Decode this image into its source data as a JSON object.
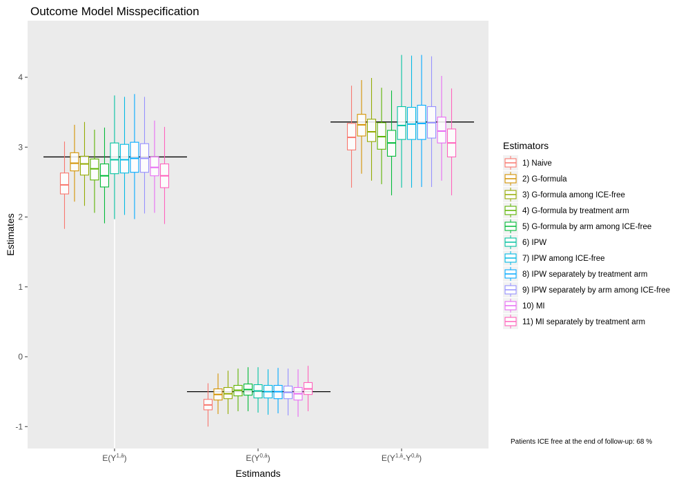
{
  "chart_data": {
    "type": "boxplot",
    "title": "Outcome Model Misspecification",
    "xlabel": "Estimands",
    "ylabel": "Estimates",
    "ylim": [
      -1.25,
      4.8
    ],
    "yticks": [
      -1,
      0,
      1,
      2,
      3,
      4
    ],
    "grid": false,
    "legend_position": "right",
    "legend_title": "Estimators",
    "note": "Patients ICE free at the end of follow-up: 68 %",
    "categories": [
      {
        "id": "e1",
        "base": "E(Y",
        "sup": "1,ā",
        "close": ")"
      },
      {
        "id": "e2",
        "base": "E(Y",
        "sup": "0,ā",
        "close": ")"
      },
      {
        "id": "e3",
        "base": "E(Y",
        "sup1": "1,ā",
        "mid": "-Y",
        "sup2": "0,ā",
        "close": ")"
      }
    ],
    "reference_lines": [
      2.86,
      -0.5,
      3.36
    ],
    "series": [
      {
        "name": "1) Naive",
        "color": "#F8766D",
        "boxes": [
          [
            1.83,
            2.33,
            2.46,
            2.63,
            3.08
          ],
          [
            -1.0,
            -0.76,
            -0.69,
            -0.61,
            -0.38
          ],
          [
            2.42,
            2.96,
            3.14,
            3.34,
            3.88
          ]
        ]
      },
      {
        "name": "2) G-formula",
        "color": "#D39200",
        "boxes": [
          [
            2.22,
            2.66,
            2.77,
            2.92,
            3.32
          ],
          [
            -0.82,
            -0.62,
            -0.54,
            -0.46,
            -0.24
          ],
          [
            2.62,
            3.16,
            3.32,
            3.47,
            3.96
          ]
        ]
      },
      {
        "name": "3) G-formula among ICE-free",
        "color": "#93AA00",
        "boxes": [
          [
            2.16,
            2.6,
            2.76,
            2.87,
            3.36
          ],
          [
            -0.82,
            -0.6,
            -0.53,
            -0.44,
            -0.2
          ],
          [
            2.52,
            3.08,
            3.22,
            3.4,
            3.99
          ]
        ]
      },
      {
        "name": "4) G-formula by treatment arm",
        "color": "#5BB300",
        "boxes": [
          [
            2.06,
            2.53,
            2.69,
            2.83,
            3.25
          ],
          [
            -0.78,
            -0.56,
            -0.48,
            -0.41,
            -0.17
          ],
          [
            2.47,
            2.97,
            3.15,
            3.35,
            3.85
          ]
        ]
      },
      {
        "name": "5) G-formula by arm among ICE-free",
        "color": "#00BA38",
        "boxes": [
          [
            1.91,
            2.43,
            2.59,
            2.76,
            3.28
          ],
          [
            -0.78,
            -0.55,
            -0.47,
            -0.39,
            -0.15
          ],
          [
            2.31,
            2.87,
            3.06,
            3.24,
            3.81
          ]
        ]
      },
      {
        "name": "6) IPW",
        "color": "#00C19F",
        "boxes": [
          [
            1.97,
            2.62,
            2.82,
            3.06,
            3.74
          ],
          [
            -0.8,
            -0.59,
            -0.49,
            -0.4,
            -0.15
          ],
          [
            2.42,
            3.11,
            3.31,
            3.58,
            4.32
          ]
        ]
      },
      {
        "name": "7) IPW among ICE-free",
        "color": "#00B9E3",
        "boxes": [
          [
            2.03,
            2.63,
            2.82,
            3.04,
            3.72
          ],
          [
            -0.83,
            -0.59,
            -0.5,
            -0.41,
            -0.18
          ],
          [
            2.42,
            3.11,
            3.33,
            3.57,
            4.31
          ]
        ]
      },
      {
        "name": "8) IPW separately by treatment arm",
        "color": "#00A9FF",
        "boxes": [
          [
            1.97,
            2.64,
            2.84,
            3.07,
            3.76
          ],
          [
            -0.81,
            -0.6,
            -0.5,
            -0.41,
            -0.16
          ],
          [
            2.43,
            3.11,
            3.34,
            3.6,
            4.32
          ]
        ]
      },
      {
        "name": "9) IPW separately by arm among ICE-free",
        "color": "#9590FF",
        "boxes": [
          [
            2.05,
            2.64,
            2.84,
            3.05,
            3.72
          ],
          [
            -0.84,
            -0.6,
            -0.51,
            -0.42,
            -0.17
          ],
          [
            2.43,
            3.13,
            3.35,
            3.58,
            4.3
          ]
        ]
      },
      {
        "name": "10) MI",
        "color": "#E76BF3",
        "boxes": [
          [
            2.06,
            2.59,
            2.71,
            2.86,
            3.38
          ],
          [
            -0.86,
            -0.62,
            -0.53,
            -0.44,
            -0.18
          ],
          [
            2.52,
            3.06,
            3.23,
            3.43,
            4.02
          ]
        ]
      },
      {
        "name": "11) MI separately by treatment arm",
        "color": "#FF62BC",
        "boxes": [
          [
            1.9,
            2.42,
            2.59,
            2.76,
            3.29
          ],
          [
            -0.78,
            -0.54,
            -0.46,
            -0.37,
            -0.13
          ],
          [
            2.31,
            2.86,
            3.06,
            3.26,
            3.84
          ]
        ]
      }
    ]
  }
}
